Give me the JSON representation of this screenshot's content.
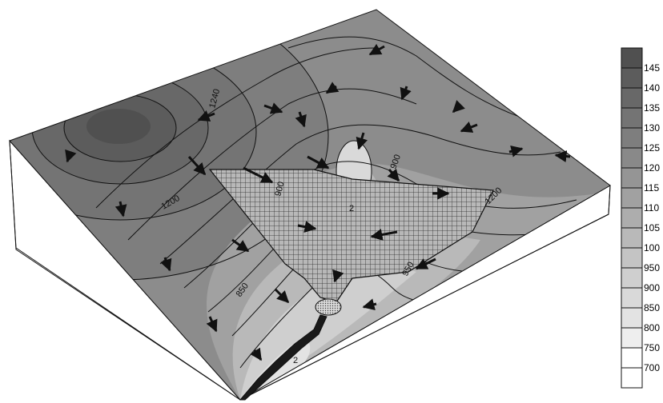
{
  "contour_labels": [
    "1240",
    "900",
    "1200",
    "900",
    "1200",
    "850",
    "950",
    "2",
    "2"
  ],
  "legend": {
    "ticks": [
      "145",
      "140",
      "135",
      "130",
      "125",
      "120",
      "115",
      "110",
      "105",
      "100",
      "950",
      "900",
      "850",
      "800",
      "750",
      "700"
    ],
    "colors": [
      "#505050",
      "#5c5c5c",
      "#686868",
      "#747474",
      "#7e7e7e",
      "#898989",
      "#959595",
      "#a1a1a1",
      "#adadad",
      "#b9b9b9",
      "#c4c4c4",
      "#cfcfcf",
      "#d9d9d9",
      "#e3e3e3",
      "#eeeeee",
      "#ffffff"
    ]
  },
  "colors": {
    "outline": "#111111",
    "mesh": "#2a2a2a",
    "side_face": "#ffffff"
  },
  "icons": [
    "flow-arrow-icon",
    "mesh-grid",
    "stream-channel"
  ]
}
